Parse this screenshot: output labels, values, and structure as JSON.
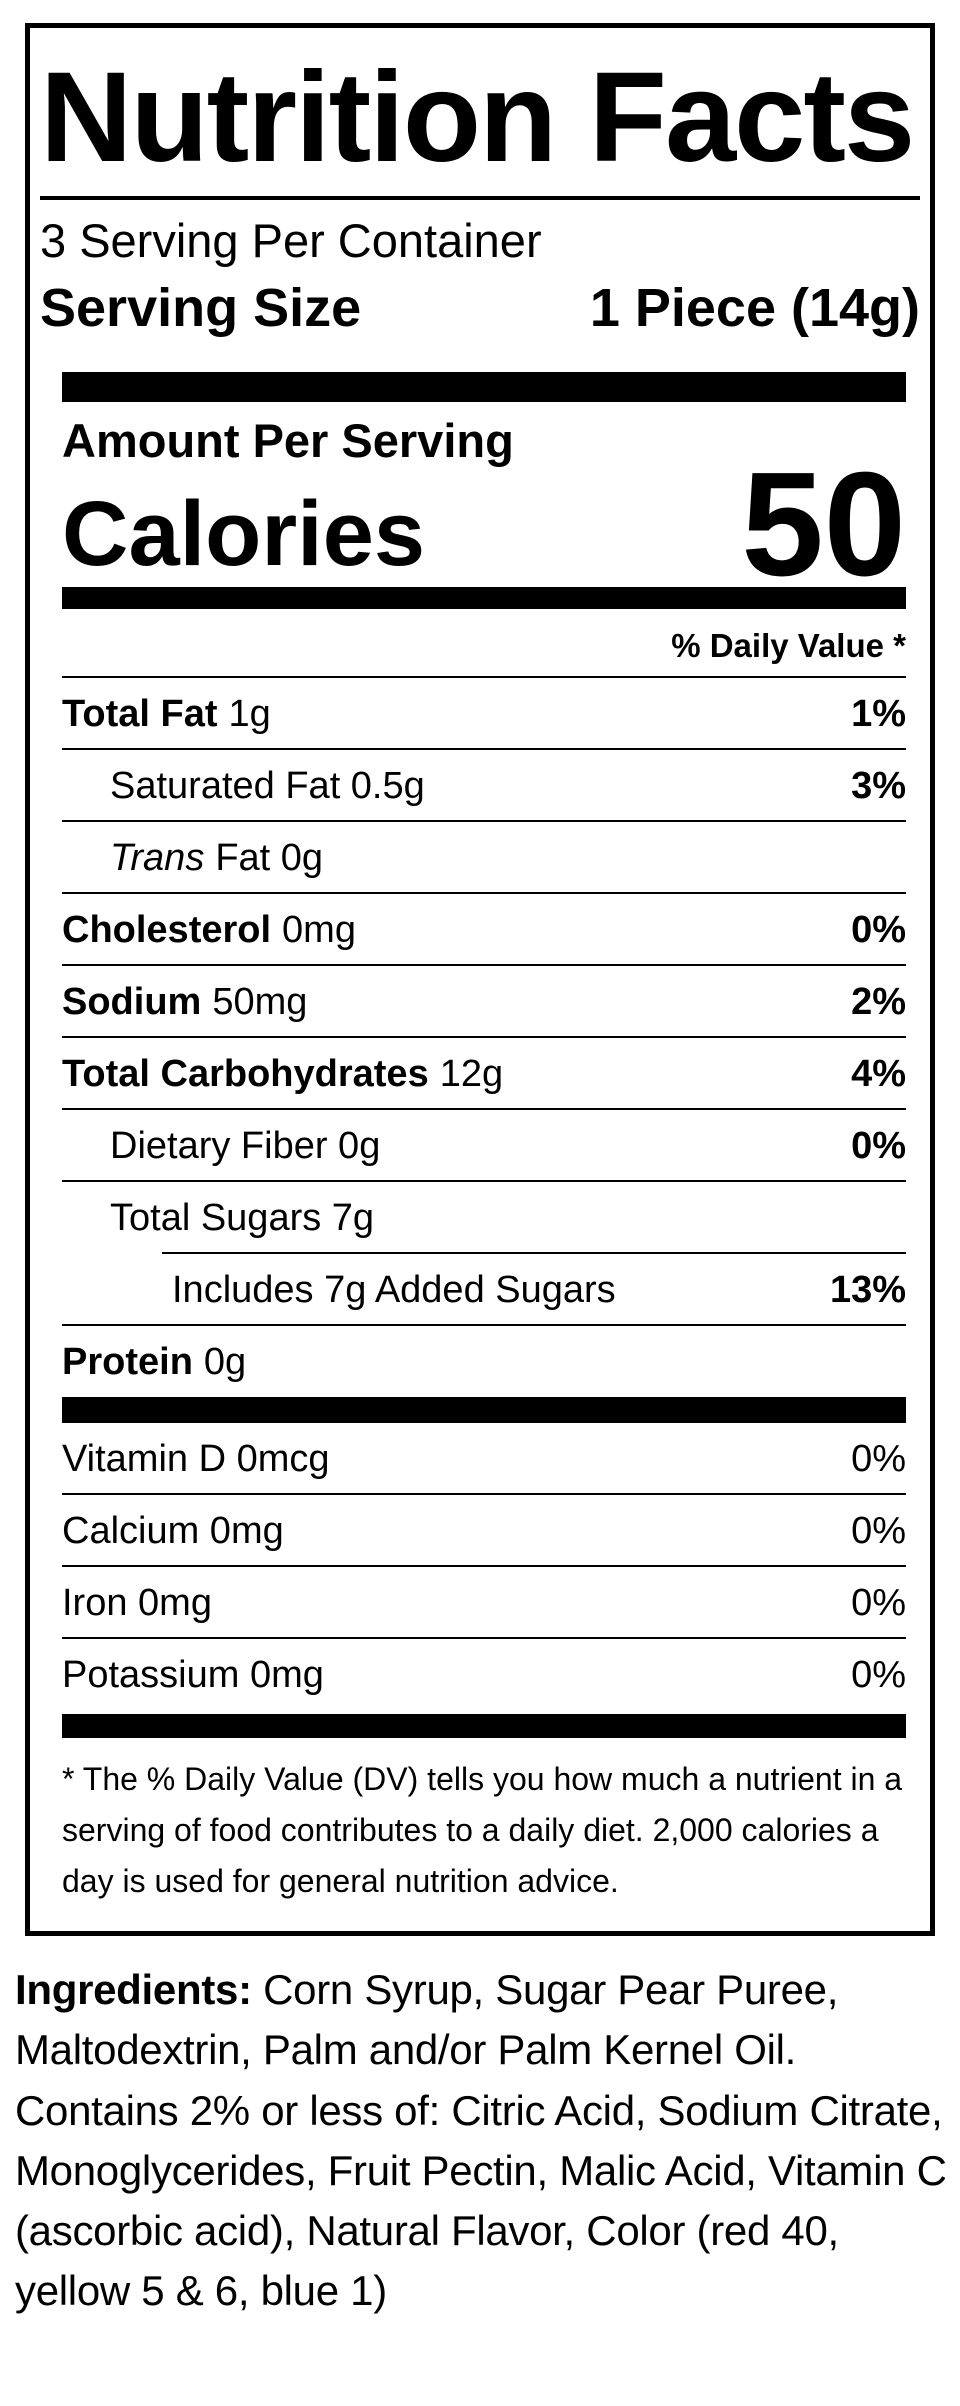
{
  "label": {
    "title": "Nutrition Facts",
    "servings_per_container": "3 Serving Per Container",
    "serving_size_label": "Serving Size",
    "serving_size_value": "1 Piece (14g)",
    "amount_per_serving_label": "Amount Per Serving",
    "calories_label": "Calories",
    "calories_value": "50",
    "daily_value_header": "% Daily Value *",
    "footnote": "* The % Daily Value (DV) tells you how much a nutrient in a serving of food contributes to a daily diet. 2,000 calories a day is used for general nutrition advice."
  },
  "nutrients": [
    {
      "em": "",
      "strong": "Total Fat",
      "rest": "1g",
      "dv": "1%"
    },
    {
      "em": "",
      "strong": "",
      "rest": "Saturated Fat 0.5g",
      "dv": "3%"
    },
    {
      "em": "Trans",
      "strong": "",
      "rest": "Fat 0g",
      "dv": ""
    },
    {
      "em": "",
      "strong": "Cholesterol",
      "rest": "0mg",
      "dv": "0%"
    },
    {
      "em": "",
      "strong": "Sodium",
      "rest": "50mg",
      "dv": "2%"
    },
    {
      "em": "",
      "strong": "Total Carbohydrates",
      "rest": "12g",
      "dv": "4%"
    },
    {
      "em": "",
      "strong": "",
      "rest": "Dietary Fiber 0g",
      "dv": "0%"
    },
    {
      "em": "",
      "strong": "",
      "rest": "Total Sugars 7g",
      "dv": ""
    },
    {
      "em": "",
      "strong": "",
      "rest": "Includes 7g Added Sugars",
      "dv": "13%"
    },
    {
      "em": "",
      "strong": "Protein",
      "rest": "0g",
      "dv": ""
    }
  ],
  "vitamins": [
    {
      "text": "Vitamin D 0mcg",
      "dv": "0%"
    },
    {
      "text": "Calcium 0mg",
      "dv": "0%"
    },
    {
      "text": "Iron 0mg",
      "dv": "0%"
    },
    {
      "text": "Potassium 0mg",
      "dv": "0%"
    }
  ],
  "ingredients": {
    "label": "Ingredients:",
    "text": "Corn Syrup, Sugar Pear Puree, Maltodextrin, Palm and/or Palm Kernel Oil. Contains 2% or less of: Citric Acid, Sodium Citrate, Monoglycerides, Fruit Pectin, Malic Acid, Vitamin C (ascorbic acid), Natural Flavor, Color (red 40, yellow 5 & 6, blue 1)"
  },
  "colors": {
    "ink": "#000000",
    "paper": "#ffffff"
  }
}
